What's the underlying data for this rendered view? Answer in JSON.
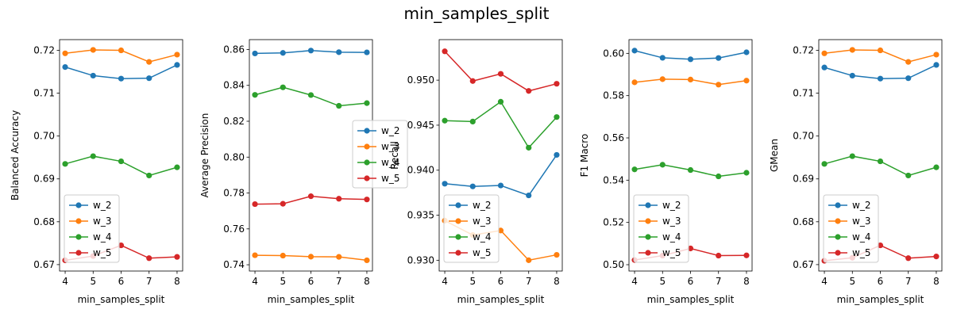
{
  "figure": {
    "suptitle": "min_samples_split"
  },
  "chart_data": [
    {
      "type": "line",
      "xlabel": "min_samples_split",
      "ylabel": "Balanced Accuracy",
      "x": [
        4,
        5,
        6,
        7,
        8
      ],
      "xticks": [
        "4",
        "5",
        "6",
        "7",
        "8"
      ],
      "ylim": [
        0.6685,
        0.7225
      ],
      "yticks": [
        0.67,
        0.68,
        0.69,
        0.7,
        0.71,
        0.72
      ],
      "ytick_labels": [
        "0.67",
        "0.68",
        "0.69",
        "0.70",
        "0.71",
        "0.72"
      ],
      "legend_loc": "lower-left",
      "series": [
        {
          "name": "w_2",
          "color": "#1f77b4",
          "values": [
            0.7161,
            0.7141,
            0.7134,
            0.7135,
            0.7166
          ]
        },
        {
          "name": "w_3",
          "color": "#ff7f0e",
          "values": [
            0.7193,
            0.7201,
            0.72,
            0.7173,
            0.719
          ]
        },
        {
          "name": "w_4",
          "color": "#2ca02c",
          "values": [
            0.6935,
            0.6953,
            0.6941,
            0.6908,
            0.6927
          ]
        },
        {
          "name": "w_5",
          "color": "#d62728",
          "values": [
            0.671,
            0.672,
            0.6745,
            0.6715,
            0.6718
          ]
        }
      ]
    },
    {
      "type": "line",
      "xlabel": "min_samples_split",
      "ylabel": "Average Precision",
      "x": [
        4,
        5,
        6,
        7,
        8
      ],
      "xticks": [
        "4",
        "5",
        "6",
        "7",
        "8"
      ],
      "ylim": [
        0.7365,
        0.8655
      ],
      "yticks": [
        0.74,
        0.76,
        0.78,
        0.8,
        0.82,
        0.84,
        0.86
      ],
      "ytick_labels": [
        "0.74",
        "0.76",
        "0.78",
        "0.80",
        "0.82",
        "0.84",
        "0.86"
      ],
      "legend_loc": "center-right",
      "series": [
        {
          "name": "w_2",
          "color": "#1f77b4",
          "values": [
            0.8578,
            0.8581,
            0.8594,
            0.8585,
            0.8584
          ]
        },
        {
          "name": "w_3",
          "color": "#ff7f0e",
          "values": [
            0.7453,
            0.7451,
            0.7445,
            0.7444,
            0.7425
          ]
        },
        {
          "name": "w_4",
          "color": "#2ca02c",
          "values": [
            0.8347,
            0.8389,
            0.8346,
            0.8286,
            0.8301
          ]
        },
        {
          "name": "w_5",
          "color": "#d62728",
          "values": [
            0.7738,
            0.774,
            0.7782,
            0.7768,
            0.7764
          ]
        }
      ]
    },
    {
      "type": "line",
      "xlabel": "min_samples_split",
      "ylabel": "Recall",
      "x": [
        4,
        5,
        6,
        7,
        8
      ],
      "xticks": [
        "4",
        "5",
        "6",
        "7",
        "8"
      ],
      "ylim": [
        0.9288,
        0.9545
      ],
      "yticks": [
        0.93,
        0.935,
        0.94,
        0.945,
        0.95
      ],
      "ytick_labels": [
        "0.930",
        "0.935",
        "0.940",
        "0.945",
        "0.950"
      ],
      "legend_loc": "lower-left",
      "series": [
        {
          "name": "w_2",
          "color": "#1f77b4",
          "values": [
            0.9385,
            0.9382,
            0.9383,
            0.9372,
            0.9417
          ]
        },
        {
          "name": "w_3",
          "color": "#ff7f0e",
          "values": [
            0.9344,
            0.9328,
            0.9333,
            0.93,
            0.9306
          ]
        },
        {
          "name": "w_4",
          "color": "#2ca02c",
          "values": [
            0.9455,
            0.9454,
            0.9476,
            0.9425,
            0.9459
          ]
        },
        {
          "name": "w_5",
          "color": "#d62728",
          "values": [
            0.9532,
            0.9499,
            0.9507,
            0.9488,
            0.9496
          ]
        }
      ]
    },
    {
      "type": "line",
      "xlabel": "min_samples_split",
      "ylabel": "F1 Macro",
      "x": [
        4,
        5,
        6,
        7,
        8
      ],
      "xticks": [
        "4",
        "5",
        "6",
        "7",
        "8"
      ],
      "ylim": [
        0.497,
        0.6065
      ],
      "yticks": [
        0.5,
        0.52,
        0.54,
        0.56,
        0.58,
        0.6
      ],
      "ytick_labels": [
        "0.50",
        "0.52",
        "0.54",
        "0.56",
        "0.58",
        "0.60"
      ],
      "legend_loc": "lower-left",
      "series": [
        {
          "name": "w_2",
          "color": "#1f77b4",
          "values": [
            0.6013,
            0.5979,
            0.5972,
            0.5978,
            0.6005
          ]
        },
        {
          "name": "w_3",
          "color": "#ff7f0e",
          "values": [
            0.5863,
            0.5878,
            0.5876,
            0.5852,
            0.5871
          ]
        },
        {
          "name": "w_4",
          "color": "#2ca02c",
          "values": [
            0.5451,
            0.5473,
            0.5448,
            0.5418,
            0.5435
          ]
        },
        {
          "name": "w_5",
          "color": "#d62728",
          "values": [
            0.5022,
            0.5043,
            0.5077,
            0.5043,
            0.5044
          ]
        }
      ]
    },
    {
      "type": "line",
      "xlabel": "min_samples_split",
      "ylabel": "GMean",
      "x": [
        4,
        5,
        6,
        7,
        8
      ],
      "xticks": [
        "4",
        "5",
        "6",
        "7",
        "8"
      ],
      "ylim": [
        0.6685,
        0.7225
      ],
      "yticks": [
        0.67,
        0.68,
        0.69,
        0.7,
        0.71,
        0.72
      ],
      "ytick_labels": [
        "0.67",
        "0.68",
        "0.69",
        "0.70",
        "0.71",
        "0.72"
      ],
      "legend_loc": "lower-left",
      "series": [
        {
          "name": "w_2",
          "color": "#1f77b4",
          "values": [
            0.716,
            0.7141,
            0.7134,
            0.7135,
            0.7166
          ]
        },
        {
          "name": "w_3",
          "color": "#ff7f0e",
          "values": [
            0.7193,
            0.7201,
            0.72,
            0.7173,
            0.719
          ]
        },
        {
          "name": "w_4",
          "color": "#2ca02c",
          "values": [
            0.6935,
            0.6953,
            0.6941,
            0.6908,
            0.6927
          ]
        },
        {
          "name": "w_5",
          "color": "#d62728",
          "values": [
            0.6709,
            0.6716,
            0.6745,
            0.6715,
            0.6719
          ]
        }
      ]
    }
  ]
}
